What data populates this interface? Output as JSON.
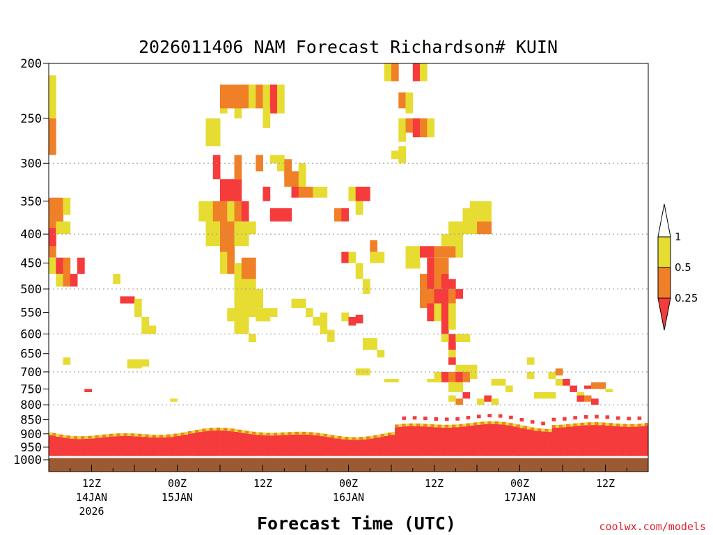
{
  "chart_data": {
    "type": "heatmap",
    "title": "2026011406 NAM Forecast Richardson# KUIN",
    "xlabel": "Forecast Time (UTC)",
    "ylabel": "",
    "credit": "coolwx.com/models",
    "y_scale": "log-pressure",
    "y_range_hpa": [
      1000,
      200
    ],
    "y_ticks": [
      "200",
      "250",
      "300",
      "350",
      "400",
      "450",
      "500",
      "550",
      "600",
      "650",
      "700",
      "750",
      "800",
      "850",
      "900",
      "950",
      "1000"
    ],
    "grid_levels_hpa": [
      300,
      400,
      500,
      600,
      700,
      800
    ],
    "x_range_hours": [
      0,
      84
    ],
    "x_ticks": [
      {
        "hour": 6,
        "label": "12Z",
        "sub": "14JAN",
        "sub2": "2026"
      },
      {
        "hour": 18,
        "label": "00Z",
        "sub": "15JAN",
        "sub2": ""
      },
      {
        "hour": 30,
        "label": "12Z",
        "sub": "",
        "sub2": ""
      },
      {
        "hour": 42,
        "label": "00Z",
        "sub": "16JAN",
        "sub2": ""
      },
      {
        "hour": 54,
        "label": "12Z",
        "sub": "",
        "sub2": ""
      },
      {
        "hour": 66,
        "label": "00Z",
        "sub": "17JAN",
        "sub2": ""
      },
      {
        "hour": 78,
        "label": "12Z",
        "sub": "",
        "sub2": ""
      }
    ],
    "legend": {
      "labels": [
        "1",
        "0.5",
        "0.25"
      ],
      "colors": {
        "lt_025": "#f53b3b",
        "b025_05": "#f08028",
        "b05_1": "#e6dc32",
        "gt_1": "#ffffff"
      }
    },
    "ground_color": "#9b5a32",
    "cells": [
      [
        0,
        210,
        250,
        "y"
      ],
      [
        0,
        250,
        290,
        "o"
      ],
      [
        0,
        345,
        380,
        "o"
      ],
      [
        0.5,
        345,
        380,
        "o"
      ],
      [
        1,
        345,
        380,
        "o"
      ],
      [
        2,
        345,
        370,
        "y"
      ],
      [
        0,
        380,
        440,
        "o"
      ],
      [
        0,
        390,
        420,
        "r"
      ],
      [
        1,
        380,
        400,
        "y"
      ],
      [
        2,
        380,
        400,
        "y"
      ],
      [
        0,
        440,
        470,
        "y"
      ],
      [
        1,
        440,
        470,
        "r"
      ],
      [
        2,
        440,
        470,
        "o"
      ],
      [
        4,
        440,
        470,
        "r"
      ],
      [
        1,
        470,
        495,
        "y"
      ],
      [
        2,
        470,
        495,
        "o"
      ],
      [
        3,
        470,
        495,
        "r"
      ],
      [
        9,
        470,
        490,
        "y"
      ],
      [
        10,
        515,
        530,
        "r"
      ],
      [
        11,
        515,
        530,
        "r"
      ],
      [
        12,
        520,
        540,
        "y"
      ],
      [
        12,
        540,
        560,
        "y"
      ],
      [
        13,
        560,
        580,
        "y"
      ],
      [
        13,
        580,
        600,
        "y"
      ],
      [
        14,
        580,
        600,
        "y"
      ],
      [
        2,
        660,
        680,
        "y"
      ],
      [
        11,
        665,
        690,
        "y"
      ],
      [
        12,
        665,
        690,
        "y"
      ],
      [
        13,
        665,
        685,
        "y"
      ],
      [
        5,
        750,
        760,
        "r"
      ],
      [
        17,
        780,
        790,
        "y"
      ],
      [
        22,
        250,
        280,
        "y"
      ],
      [
        23,
        250,
        280,
        "y"
      ],
      [
        23,
        290,
        320,
        "r"
      ],
      [
        26,
        290,
        320,
        "o"
      ],
      [
        21,
        350,
        380,
        "y"
      ],
      [
        22,
        350,
        380,
        "y"
      ],
      [
        23,
        350,
        380,
        "o"
      ],
      [
        24,
        320,
        350,
        "r"
      ],
      [
        25,
        320,
        350,
        "r"
      ],
      [
        26,
        320,
        350,
        "r"
      ],
      [
        24,
        350,
        400,
        "o"
      ],
      [
        25,
        350,
        400,
        "y"
      ],
      [
        26,
        350,
        380,
        "o"
      ],
      [
        27,
        350,
        380,
        "r"
      ],
      [
        22,
        380,
        420,
        "y"
      ],
      [
        23,
        380,
        420,
        "y"
      ],
      [
        24,
        380,
        440,
        "o"
      ],
      [
        25,
        380,
        440,
        "o"
      ],
      [
        26,
        380,
        420,
        "y"
      ],
      [
        27,
        380,
        420,
        "y"
      ],
      [
        28,
        380,
        400,
        "y"
      ],
      [
        24,
        430,
        470,
        "y"
      ],
      [
        25,
        430,
        470,
        "o"
      ],
      [
        26,
        450,
        480,
        "y"
      ],
      [
        27,
        440,
        480,
        "o"
      ],
      [
        28,
        440,
        480,
        "o"
      ],
      [
        26,
        480,
        560,
        "y"
      ],
      [
        27,
        480,
        560,
        "y"
      ],
      [
        28,
        480,
        560,
        "y"
      ],
      [
        29,
        500,
        540,
        "y"
      ],
      [
        25,
        540,
        570,
        "y"
      ],
      [
        26,
        560,
        600,
        "y"
      ],
      [
        27,
        560,
        600,
        "y"
      ],
      [
        29,
        540,
        570,
        "y"
      ],
      [
        30,
        540,
        570,
        "y"
      ],
      [
        31,
        540,
        560,
        "y"
      ],
      [
        28,
        600,
        620,
        "y"
      ],
      [
        24,
        218,
        240,
        "o"
      ],
      [
        25,
        218,
        240,
        "o"
      ],
      [
        26,
        218,
        240,
        "o"
      ],
      [
        27,
        218,
        240,
        "o"
      ],
      [
        28,
        218,
        240,
        "y"
      ],
      [
        24,
        240,
        245,
        "y"
      ],
      [
        26,
        240,
        250,
        "y"
      ],
      [
        29,
        218,
        240,
        "o"
      ],
      [
        30,
        218,
        240,
        "y"
      ],
      [
        31,
        218,
        245,
        "r"
      ],
      [
        32,
        218,
        245,
        "y"
      ],
      [
        30,
        240,
        260,
        "y"
      ],
      [
        29,
        290,
        310,
        "o"
      ],
      [
        31,
        290,
        300,
        "y"
      ],
      [
        32,
        290,
        310,
        "y"
      ],
      [
        33,
        295,
        320,
        "o"
      ],
      [
        30,
        330,
        350,
        "r"
      ],
      [
        31,
        360,
        380,
        "r"
      ],
      [
        32,
        360,
        380,
        "r"
      ],
      [
        33,
        360,
        380,
        "r"
      ],
      [
        34,
        330,
        345,
        "r"
      ],
      [
        35,
        330,
        345,
        "o"
      ],
      [
        36,
        330,
        345,
        "o"
      ],
      [
        37,
        330,
        345,
        "y"
      ],
      [
        38,
        330,
        345,
        "y"
      ],
      [
        33,
        310,
        330,
        "o"
      ],
      [
        34,
        310,
        330,
        "o"
      ],
      [
        35,
        300,
        330,
        "y"
      ],
      [
        34,
        520,
        540,
        "y"
      ],
      [
        35,
        520,
        540,
        "y"
      ],
      [
        36,
        540,
        560,
        "y"
      ],
      [
        37,
        560,
        580,
        "y"
      ],
      [
        38,
        550,
        600,
        "y"
      ],
      [
        39,
        590,
        620,
        "y"
      ],
      [
        41,
        550,
        570,
        "y"
      ],
      [
        42,
        560,
        580,
        "r"
      ],
      [
        43,
        555,
        575,
        "r"
      ],
      [
        40,
        360,
        380,
        "o"
      ],
      [
        41,
        360,
        380,
        "r"
      ],
      [
        42,
        330,
        350,
        "y"
      ],
      [
        43,
        330,
        350,
        "r"
      ],
      [
        44,
        330,
        350,
        "r"
      ],
      [
        43,
        350,
        370,
        "y"
      ],
      [
        41,
        430,
        450,
        "r"
      ],
      [
        42,
        430,
        450,
        "y"
      ],
      [
        43,
        450,
        480,
        "y"
      ],
      [
        44,
        480,
        510,
        "y"
      ],
      [
        45,
        430,
        450,
        "y"
      ],
      [
        46,
        430,
        450,
        "y"
      ],
      [
        45,
        410,
        430,
        "o"
      ],
      [
        44,
        610,
        640,
        "y"
      ],
      [
        45,
        610,
        640,
        "y"
      ],
      [
        46,
        640,
        660,
        "y"
      ],
      [
        43,
        690,
        710,
        "y"
      ],
      [
        44,
        690,
        710,
        "y"
      ],
      [
        47,
        200,
        215,
        "y"
      ],
      [
        48,
        200,
        215,
        "o"
      ],
      [
        51,
        200,
        215,
        "r"
      ],
      [
        52,
        200,
        215,
        "y"
      ],
      [
        49,
        225,
        240,
        "o"
      ],
      [
        50,
        225,
        245,
        "y"
      ],
      [
        49,
        250,
        265,
        "y"
      ],
      [
        50,
        250,
        265,
        "o"
      ],
      [
        51,
        250,
        270,
        "r"
      ],
      [
        52,
        250,
        270,
        "o"
      ],
      [
        53,
        250,
        270,
        "y"
      ],
      [
        49,
        265,
        275,
        "y"
      ],
      [
        48,
        285,
        295,
        "y"
      ],
      [
        49,
        280,
        300,
        "y"
      ],
      [
        50,
        420,
        460,
        "y"
      ],
      [
        51,
        420,
        460,
        "y"
      ],
      [
        52,
        420,
        440,
        "r"
      ],
      [
        53,
        420,
        440,
        "r"
      ],
      [
        54,
        420,
        440,
        "o"
      ],
      [
        55,
        420,
        440,
        "o"
      ],
      [
        56,
        420,
        440,
        "o"
      ],
      [
        57,
        420,
        440,
        "y"
      ],
      [
        55,
        400,
        420,
        "y"
      ],
      [
        56,
        380,
        420,
        "y"
      ],
      [
        57,
        380,
        420,
        "y"
      ],
      [
        58,
        360,
        400,
        "y"
      ],
      [
        59,
        360,
        400,
        "y"
      ],
      [
        60,
        370,
        400,
        "y"
      ],
      [
        60,
        380,
        400,
        "o"
      ],
      [
        61,
        380,
        400,
        "o"
      ],
      [
        59,
        350,
        380,
        "y"
      ],
      [
        60,
        350,
        380,
        "y"
      ],
      [
        61,
        350,
        380,
        "y"
      ],
      [
        53,
        440,
        480,
        "r"
      ],
      [
        54,
        440,
        480,
        "o"
      ],
      [
        55,
        440,
        480,
        "o"
      ],
      [
        52,
        470,
        500,
        "o"
      ],
      [
        53,
        470,
        500,
        "r"
      ],
      [
        54,
        470,
        500,
        "o"
      ],
      [
        55,
        470,
        500,
        "r"
      ],
      [
        56,
        480,
        500,
        "r"
      ],
      [
        52,
        500,
        540,
        "o"
      ],
      [
        53,
        500,
        540,
        "o"
      ],
      [
        54,
        500,
        530,
        "r"
      ],
      [
        55,
        500,
        530,
        "r"
      ],
      [
        56,
        500,
        530,
        "o"
      ],
      [
        57,
        500,
        520,
        "r"
      ],
      [
        53,
        530,
        570,
        "r"
      ],
      [
        54,
        530,
        570,
        "y"
      ],
      [
        55,
        530,
        560,
        "r"
      ],
      [
        56,
        530,
        560,
        "y"
      ],
      [
        55,
        560,
        600,
        "r"
      ],
      [
        56,
        560,
        590,
        "y"
      ],
      [
        56,
        600,
        640,
        "r"
      ],
      [
        55,
        600,
        620,
        "y"
      ],
      [
        57,
        600,
        620,
        "y"
      ],
      [
        58,
        600,
        620,
        "y"
      ],
      [
        56,
        640,
        660,
        "y"
      ],
      [
        56,
        660,
        680,
        "r"
      ],
      [
        57,
        680,
        700,
        "y"
      ],
      [
        58,
        680,
        700,
        "y"
      ],
      [
        59,
        680,
        700,
        "y"
      ],
      [
        54,
        700,
        720,
        "y"
      ],
      [
        55,
        700,
        730,
        "r"
      ],
      [
        56,
        700,
        730,
        "o"
      ],
      [
        57,
        700,
        730,
        "r"
      ],
      [
        58,
        700,
        730,
        "o"
      ],
      [
        59,
        700,
        720,
        "y"
      ],
      [
        56,
        730,
        760,
        "y"
      ],
      [
        57,
        730,
        760,
        "y"
      ],
      [
        58,
        760,
        780,
        "r"
      ],
      [
        57,
        780,
        800,
        "o"
      ],
      [
        56,
        770,
        790,
        "y"
      ],
      [
        53,
        720,
        730,
        "y"
      ],
      [
        54,
        720,
        730,
        "y"
      ],
      [
        47,
        720,
        730,
        "y"
      ],
      [
        48,
        720,
        730,
        "y"
      ],
      [
        60,
        780,
        800,
        "y"
      ],
      [
        61,
        770,
        790,
        "r"
      ],
      [
        62,
        780,
        800,
        "y"
      ],
      [
        62,
        720,
        740,
        "y"
      ],
      [
        63,
        720,
        740,
        "y"
      ],
      [
        64,
        740,
        760,
        "y"
      ],
      [
        67,
        700,
        720,
        "y"
      ],
      [
        67,
        660,
        680,
        "y"
      ],
      [
        70,
        700,
        720,
        "y"
      ],
      [
        71,
        690,
        710,
        "o"
      ],
      [
        71,
        720,
        740,
        "y"
      ],
      [
        72,
        720,
        740,
        "r"
      ],
      [
        73,
        740,
        760,
        "r"
      ],
      [
        74,
        760,
        780,
        "y"
      ],
      [
        68,
        760,
        780,
        "y"
      ],
      [
        69,
        760,
        780,
        "y"
      ],
      [
        70,
        760,
        780,
        "y"
      ],
      [
        75,
        740,
        750,
        "r"
      ],
      [
        76,
        730,
        750,
        "o"
      ],
      [
        77,
        730,
        750,
        "o"
      ],
      [
        78,
        750,
        760,
        "y"
      ],
      [
        74,
        770,
        790,
        "r"
      ],
      [
        75,
        770,
        790,
        "o"
      ],
      [
        76,
        780,
        800,
        "r"
      ]
    ]
  }
}
